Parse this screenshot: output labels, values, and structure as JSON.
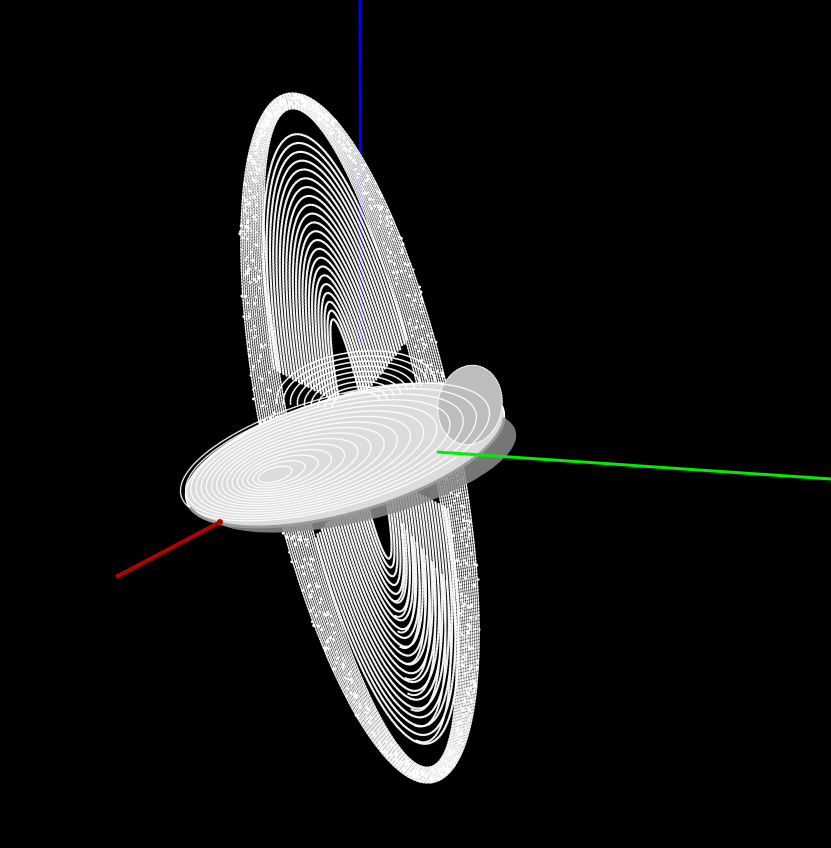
{
  "scene": {
    "background": "#000000",
    "point_color": "#ffffff",
    "shade_color": "#8c8c8c",
    "axes": [
      {
        "id": "x",
        "color": "#b30000"
      },
      {
        "id": "y",
        "color": "#00ee00"
      },
      {
        "id": "z",
        "color": "#0000ff"
      }
    ]
  }
}
